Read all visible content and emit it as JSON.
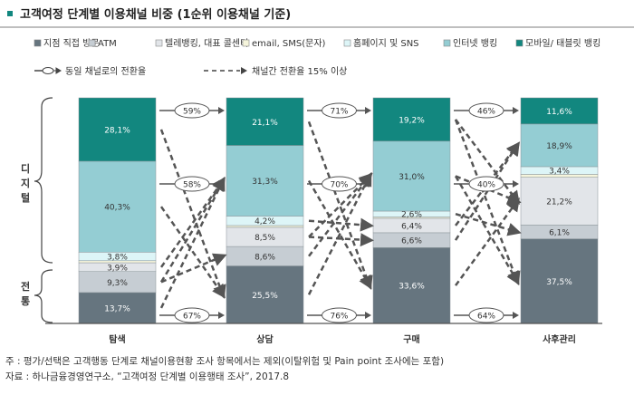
{
  "title": "고객여정 단계별 이용채널 비중 (1순위 이용채널 기준)",
  "legend": {
    "channels": [
      "지점 직접 방문",
      "ATM",
      "텔레뱅킹, 대표 콜센터",
      "email, SMS(문자)",
      "홈페이지 및 SNS",
      "인터넷 뱅킹",
      "모바일/ 태블릿 뱅킹"
    ],
    "same_channel": "동일 채널로의 전환율",
    "cross_channel": "채널간 전환율 15% 이상"
  },
  "groups": {
    "digital": "디지털",
    "traditional": "전통"
  },
  "colors": [
    "#66757f",
    "#c6cdd3",
    "#e2e5e9",
    "#f6f5dc",
    "#ddf5f7",
    "#94cdd3",
    "#12877f"
  ],
  "chart_data": {
    "type": "bar",
    "stacked": true,
    "categories": [
      "탐색",
      "상담",
      "구매",
      "사후관리"
    ],
    "series": [
      {
        "name": "지점 직접 방문",
        "values": [
          13.7,
          25.5,
          33.6,
          37.5
        ],
        "labels": [
          "13,7%",
          "25,5%",
          "33,6%",
          "37,5%"
        ]
      },
      {
        "name": "ATM",
        "values": [
          9.3,
          8.6,
          6.6,
          6.1
        ],
        "labels": [
          "9,3%",
          "8,6%",
          "6,6%",
          "6,1%"
        ]
      },
      {
        "name": "텔레뱅킹, 대표 콜센터",
        "values": [
          3.9,
          8.5,
          6.4,
          21.2
        ],
        "labels": [
          "3,9%",
          "8,5%",
          "6,4%",
          "21,2%"
        ]
      },
      {
        "name": "email, SMS(문자)",
        "values": [
          0.9,
          0.8,
          0.6,
          1.3
        ],
        "labels": [
          "",
          "",
          "",
          ""
        ]
      },
      {
        "name": "홈페이지 및 SNS",
        "values": [
          3.8,
          4.2,
          2.6,
          3.4
        ],
        "labels": [
          "3,8%",
          "4,2%",
          "2,6%",
          "3,4%"
        ]
      },
      {
        "name": "인터넷 뱅킹",
        "values": [
          40.3,
          31.3,
          31.0,
          18.9
        ],
        "labels": [
          "40,3%",
          "31,3%",
          "31,0%",
          "18,9%"
        ]
      },
      {
        "name": "모바일/ 태블릿 뱅킹",
        "values": [
          28.1,
          21.1,
          19.2,
          11.6
        ],
        "labels": [
          "28,1%",
          "21,1%",
          "19,2%",
          "11,6%"
        ]
      }
    ],
    "same_channel_rates": {
      "mobile": [
        "59%",
        "71%",
        "46%"
      ],
      "internet": [
        "58%",
        "70%",
        "40%"
      ],
      "branch": [
        "67%",
        "76%",
        "64%"
      ]
    }
  },
  "footer": {
    "note": "주 : 평가/선택은 고객행동 단계로 채널이용현황 조사 항목에서는 제외(이탈위험 및 Pain point 조사에는 포함)",
    "source": "자료 : 하나금융경영연구소, “고객여정 단계별 이용행태 조사”, 2017.8"
  }
}
